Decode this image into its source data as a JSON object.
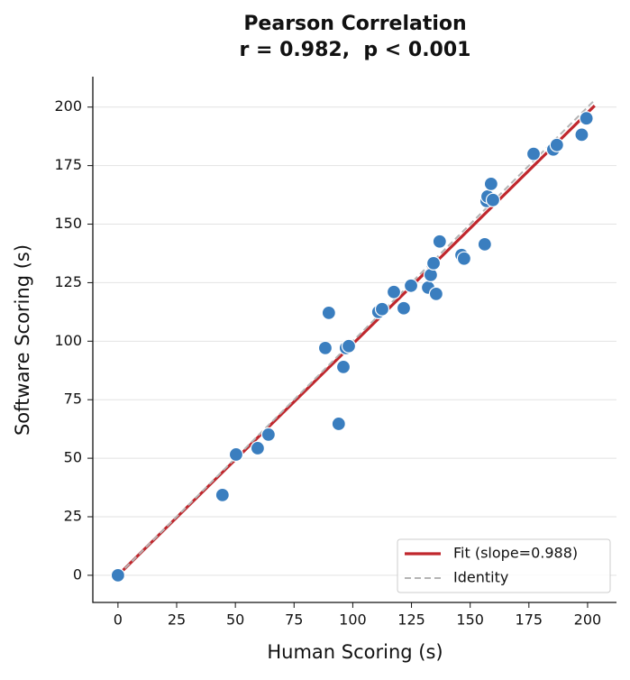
{
  "chart_data": {
    "type": "scatter",
    "title": "Pearson Correlation",
    "subtitle": "r = 0.982,  p < 0.001",
    "x_label": "Human Scoring (s)",
    "y_label": "Software Scoring (s)",
    "xlim": [
      -10.7,
      212.3
    ],
    "ylim": [
      -11.6,
      213
    ],
    "xticks": [
      0,
      25,
      50,
      75,
      100,
      125,
      150,
      175,
      200
    ],
    "yticks": [
      0,
      25,
      50,
      75,
      100,
      125,
      150,
      175,
      200
    ],
    "grid": true,
    "legend_position": "lower right",
    "series": [
      {
        "color": "#3a7ebf",
        "x": [
          0,
          44.5,
          50.3,
          59.5,
          64.1,
          94.0,
          88.3,
          89.8,
          96.0,
          97.1,
          98.3,
          110.9,
          112.5,
          121.7,
          117.5,
          124.8,
          132.1,
          133.2,
          134.4,
          135.5,
          137.0,
          146.3,
          147.4,
          156.2,
          157.0,
          157.4,
          158.9,
          159.7,
          177.0,
          185.4,
          186.9,
          197.5,
          199.5
        ],
        "values": [
          0,
          34.3,
          51.6,
          54.3,
          60.1,
          64.7,
          97.1,
          112.1,
          89.0,
          97.1,
          97.9,
          112.5,
          113.7,
          114.1,
          121.0,
          123.7,
          122.9,
          128.3,
          133.3,
          120.2,
          142.6,
          136.8,
          135.3,
          141.4,
          159.9,
          161.8,
          167.2,
          160.3,
          180.0,
          181.9,
          183.8,
          188.2,
          195.2
        ]
      }
    ],
    "lines": [
      {
        "name": "Fit (slope=0.988)",
        "color": "#c0272d",
        "dashed": false,
        "x": [
          0,
          203
        ],
        "values": [
          0,
          200.6
        ]
      },
      {
        "name": "Identity",
        "color": "#b4b4b4",
        "dashed": true,
        "x": [
          0,
          203
        ],
        "values": [
          0,
          203
        ]
      }
    ]
  }
}
